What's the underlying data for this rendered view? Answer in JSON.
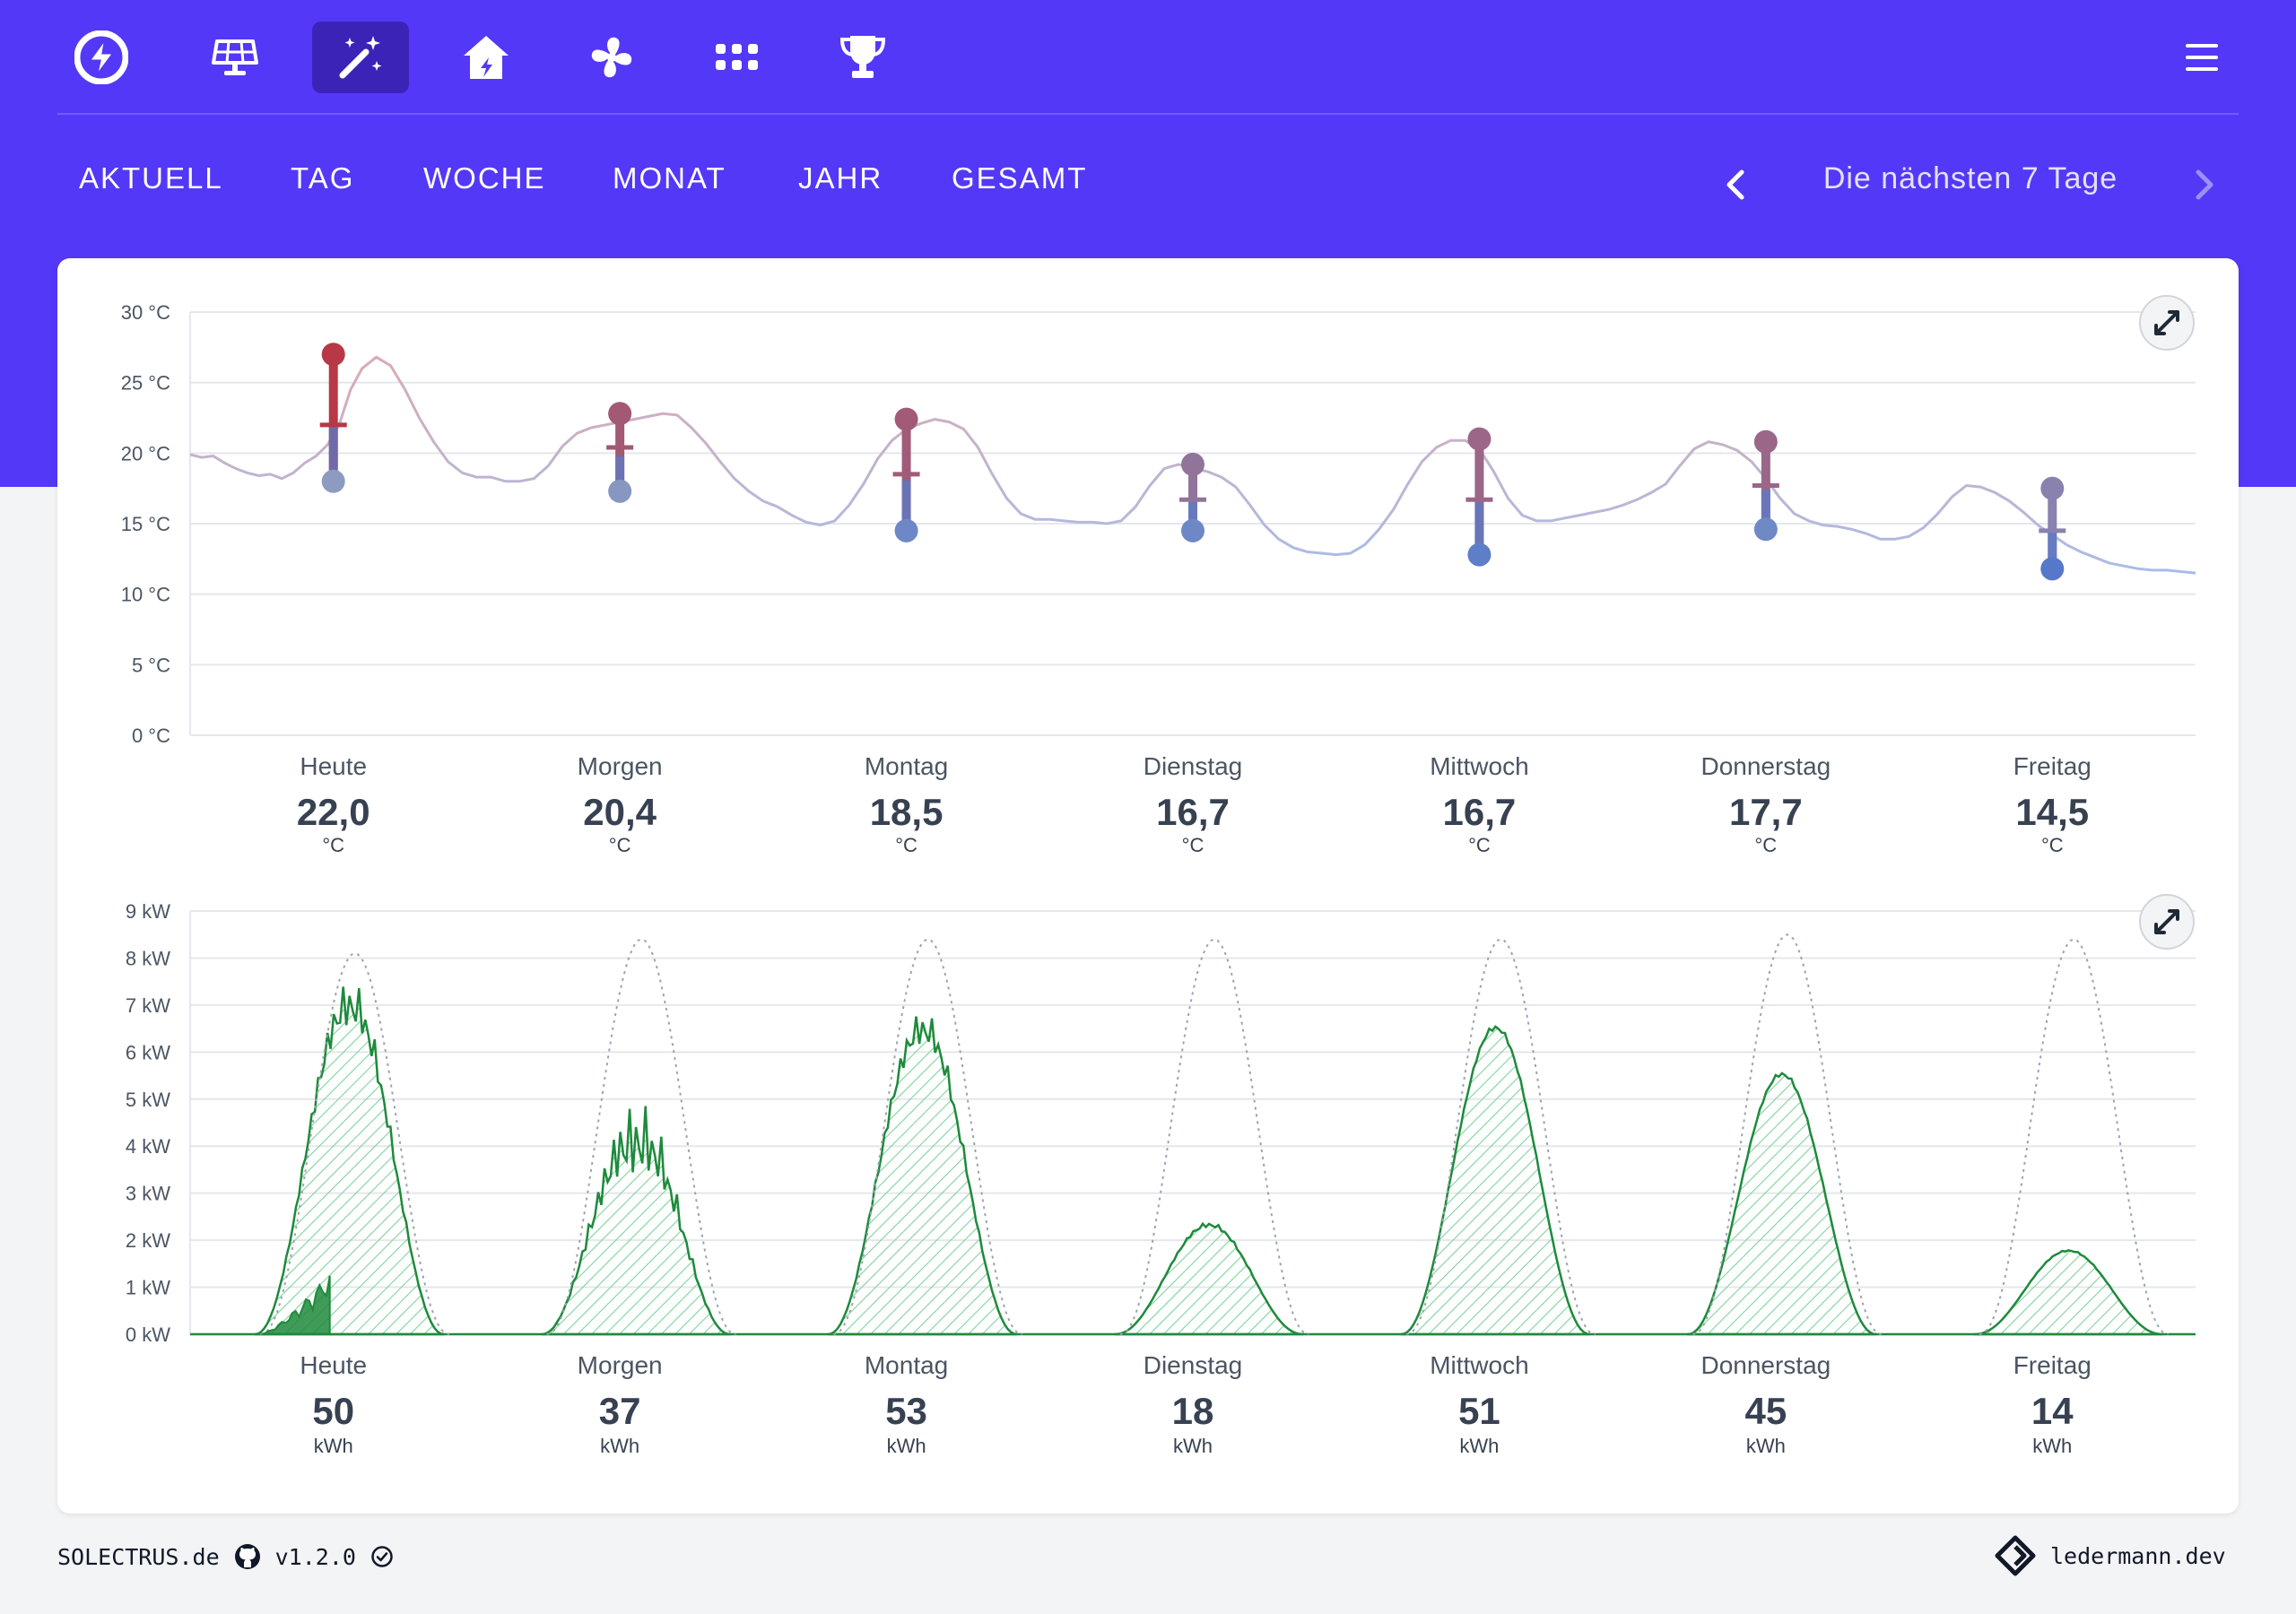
{
  "colors": {
    "brand": "#5338f7",
    "active_nav_bg": "#3c23b8",
    "background": "#f3f4f6",
    "card": "#ffffff",
    "pv_actual": "#1e8a3c",
    "pv_forecast_fill": "#5cc87a",
    "warm": "#b83845",
    "cold": "#4f74cc"
  },
  "nav": {
    "icons": [
      "bolt-logo-icon",
      "solar-panel-icon",
      "magic-wand-icon",
      "house-icon",
      "fan-icon",
      "grid-icon",
      "trophy-icon",
      "hamburger-menu-icon"
    ],
    "active": "magic-wand-icon"
  },
  "tabs": [
    {
      "label": "AKTUELL"
    },
    {
      "label": "TAG"
    },
    {
      "label": "WOCHE"
    },
    {
      "label": "MONAT"
    },
    {
      "label": "JAHR"
    },
    {
      "label": "GESAMT"
    }
  ],
  "period": {
    "label": "Die nächsten 7 Tage",
    "prev_icon": "chevron-left-icon",
    "next_icon": "chevron-right-icon"
  },
  "chart_data": [
    {
      "type": "line",
      "ylim": [
        0,
        30
      ],
      "y_ticks": [
        "30 °C",
        "25 °C",
        "20 °C",
        "15 °C",
        "10 °C",
        "5 °C",
        "0 °C"
      ],
      "grid": true,
      "categories": [
        "Heute",
        "Morgen",
        "Montag",
        "Dienstag",
        "Mittwoch",
        "Donnerstag",
        "Freitag"
      ],
      "summary_values": [
        "22,0",
        "20,4",
        "18,5",
        "16,7",
        "16,7",
        "17,7",
        "14,5"
      ],
      "unit": "°C",
      "ranges": [
        {
          "max": 27.0,
          "avg": 22.0,
          "min": 18.0
        },
        {
          "max": 22.8,
          "avg": 20.4,
          "min": 17.3
        },
        {
          "max": 22.4,
          "avg": 18.5,
          "min": 14.5
        },
        {
          "max": 19.2,
          "avg": 16.7,
          "min": 14.5
        },
        {
          "max": 21.0,
          "avg": 16.7,
          "min": 12.8
        },
        {
          "max": 20.8,
          "avg": 17.7,
          "min": 14.6
        },
        {
          "max": 17.5,
          "avg": 14.5,
          "min": 11.8
        }
      ],
      "hourly_curve": {
        "x_days": [
          0,
          0.04,
          0.08,
          0.12,
          0.16,
          0.2,
          0.24,
          0.28,
          0.32,
          0.36,
          0.4,
          0.44,
          0.48,
          0.52,
          0.56,
          0.6,
          0.65,
          0.7,
          0.75,
          0.8,
          0.85,
          0.9,
          0.95,
          1.0,
          1.05,
          1.1,
          1.15,
          1.2,
          1.25,
          1.3,
          1.35,
          1.4,
          1.45,
          1.5,
          1.55,
          1.6,
          1.65,
          1.7,
          1.75,
          1.8,
          1.85,
          1.9,
          1.95,
          2.0,
          2.05,
          2.1,
          2.15,
          2.2,
          2.25,
          2.3,
          2.35,
          2.4,
          2.45,
          2.5,
          2.55,
          2.6,
          2.65,
          2.7,
          2.75,
          2.8,
          2.85,
          2.9,
          2.95,
          3.0,
          3.05,
          3.1,
          3.15,
          3.2,
          3.25,
          3.3,
          3.35,
          3.4,
          3.45,
          3.5,
          3.55,
          3.6,
          3.65,
          3.7,
          3.75,
          3.8,
          3.85,
          3.9,
          3.95,
          4.0,
          4.05,
          4.1,
          4.15,
          4.2,
          4.25,
          4.3,
          4.35,
          4.4,
          4.45,
          4.5,
          4.55,
          4.6,
          4.65,
          4.7,
          4.75,
          4.8,
          4.85,
          4.9,
          4.95,
          5.0,
          5.05,
          5.1,
          5.15,
          5.2,
          5.25,
          5.3,
          5.35,
          5.4,
          5.45,
          5.5,
          5.55,
          5.6,
          5.65,
          5.7,
          5.75,
          5.8,
          5.85,
          5.9,
          5.95,
          6.0,
          6.05,
          6.1,
          6.15,
          6.2,
          6.25,
          6.3,
          6.35,
          6.4,
          6.45,
          6.5,
          6.55,
          6.6,
          6.65,
          6.7,
          6.75,
          6.8,
          6.85,
          6.9,
          6.95,
          7.0
        ],
        "temps": [
          19.9,
          19.7,
          19.8,
          19.3,
          18.9,
          18.6,
          18.4,
          18.5,
          18.2,
          18.6,
          19.3,
          19.8,
          20.6,
          22.0,
          24.5,
          26.0,
          26.8,
          26.2,
          24.5,
          22.5,
          20.8,
          19.4,
          18.6,
          18.3,
          18.3,
          18.0,
          18.0,
          18.2,
          19.1,
          20.5,
          21.4,
          21.8,
          22.0,
          22.2,
          22.4,
          22.6,
          22.8,
          22.7,
          21.8,
          20.7,
          19.4,
          18.2,
          17.3,
          16.6,
          16.2,
          15.6,
          15.1,
          14.9,
          15.2,
          16.3,
          17.8,
          19.6,
          20.9,
          21.7,
          22.1,
          22.4,
          22.2,
          21.7,
          20.4,
          18.5,
          16.8,
          15.7,
          15.3,
          15.3,
          15.2,
          15.1,
          15.1,
          15.0,
          15.2,
          16.2,
          17.7,
          18.9,
          19.2,
          18.9,
          18.7,
          18.3,
          17.6,
          16.3,
          14.9,
          13.9,
          13.3,
          13.0,
          12.9,
          12.8,
          12.9,
          13.5,
          14.6,
          16.0,
          17.8,
          19.4,
          20.4,
          20.9,
          20.9,
          20.3,
          18.7,
          16.8,
          15.6,
          15.2,
          15.2,
          15.4,
          15.6,
          15.8,
          16.0,
          16.3,
          16.7,
          17.2,
          17.8,
          19.1,
          20.3,
          20.8,
          20.6,
          20.2,
          19.4,
          18.2,
          16.8,
          15.7,
          15.2,
          14.9,
          14.8,
          14.6,
          14.3,
          13.9,
          13.9,
          14.1,
          14.7,
          15.7,
          16.9,
          17.7,
          17.6,
          17.2,
          16.6,
          15.8,
          14.9,
          14.2,
          13.5,
          13.0,
          12.6,
          12.2,
          12.0,
          11.8,
          11.7,
          11.7,
          11.6,
          11.5,
          11.5
        ]
      }
    },
    {
      "type": "area",
      "ylim": [
        0,
        9
      ],
      "y_ticks": [
        "9 kW",
        "8 kW",
        "7 kW",
        "6 kW",
        "5 kW",
        "4 kW",
        "3 kW",
        "2 kW",
        "1 kW",
        "0 kW"
      ],
      "grid": true,
      "categories": [
        "Heute",
        "Morgen",
        "Montag",
        "Dienstag",
        "Mittwoch",
        "Donnerstag",
        "Freitag"
      ],
      "summary_values": [
        "50",
        "37",
        "53",
        "18",
        "51",
        "45",
        "14"
      ],
      "unit": "kWh",
      "series": [
        {
          "values_peak_kw": [
            7.7,
            5.2,
            7.0,
            2.4,
            6.6,
            5.6,
            1.8
          ]
        },
        {
          "values_peak_kw": [
            8.1,
            8.4,
            8.4,
            8.4,
            8.4,
            8.5,
            8.4
          ]
        }
      ],
      "actual_today_peak_kw": 1.3
    }
  ],
  "footer": {
    "brand": "SOLECTRUS.de",
    "version": "v1.2.0",
    "author": "ledermann.dev",
    "github_icon": "github-icon",
    "check_icon": "check-circle-icon",
    "author_icon": "ledermann-logo-icon"
  }
}
